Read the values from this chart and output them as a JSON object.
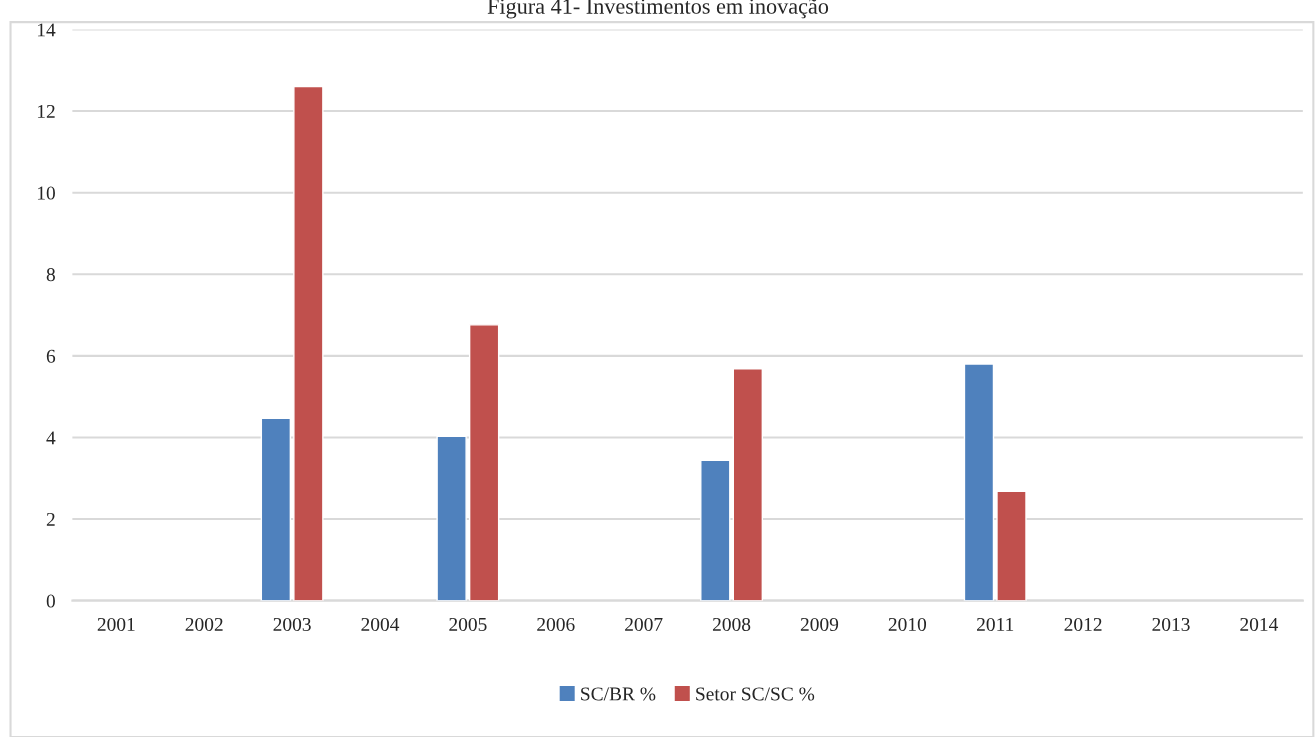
{
  "chart_data": {
    "type": "bar",
    "title": "Figura 41- Investimentos em inovação",
    "categories": [
      "2001",
      "2002",
      "2003",
      "2004",
      "2005",
      "2006",
      "2007",
      "2008",
      "2009",
      "2010",
      "2011",
      "2012",
      "2013",
      "2014"
    ],
    "series": [
      {
        "name": "SC/BR %",
        "color": "#4f81bd",
        "values": [
          null,
          null,
          4.47,
          null,
          4.03,
          null,
          null,
          3.44,
          null,
          null,
          5.8,
          null,
          null,
          null
        ]
      },
      {
        "name": "Setor SC/SC %",
        "color": "#c0504d",
        "values": [
          null,
          null,
          12.6,
          null,
          6.76,
          null,
          null,
          5.68,
          null,
          null,
          2.68,
          null,
          null,
          null
        ]
      }
    ],
    "ylim": [
      0,
      14
    ],
    "yticks": [
      0,
      2,
      4,
      6,
      8,
      10,
      12,
      14
    ],
    "grid": "y",
    "legend": "bottom"
  }
}
